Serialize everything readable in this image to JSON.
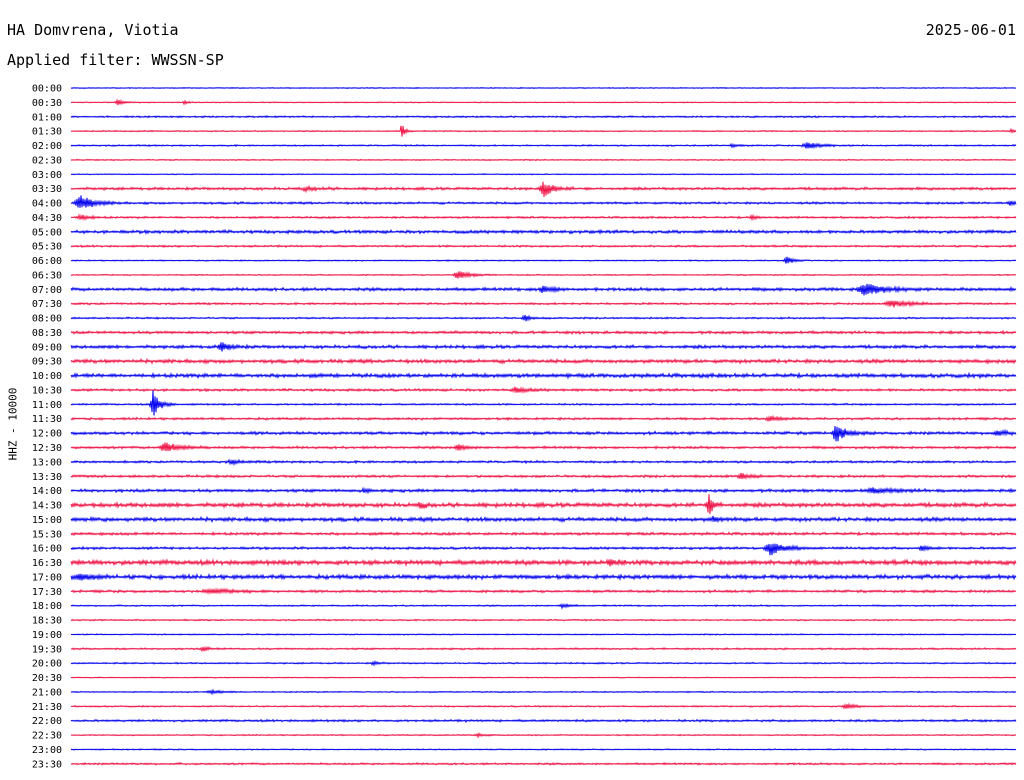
{
  "header": {
    "station": "HA Domvrena, Viotia",
    "date": "2025-06-01",
    "filter": "Applied filter: WWSSN-SP",
    "channel": "HHZ - 10000"
  },
  "chart_data": {
    "type": "line",
    "title": "HA Domvrena, Viotia",
    "date": "2025-06-01",
    "filter": "WWSSN-SP",
    "ylabel": "HHZ - 10000",
    "colors": [
      "#0000ee",
      "#ee1144"
    ],
    "rows": [
      {
        "label": "00:00",
        "noise": 0.4,
        "events": []
      },
      {
        "label": "00:30",
        "noise": 0.4,
        "events": [
          {
            "t": 0.05,
            "a": 3,
            "w": 0.006
          },
          {
            "t": 0.12,
            "a": 1.5,
            "w": 0.004
          }
        ]
      },
      {
        "label": "01:00",
        "noise": 0.7,
        "events": []
      },
      {
        "label": "01:30",
        "noise": 0.5,
        "events": [
          {
            "t": 0.35,
            "a": 8,
            "w": 0.003
          },
          {
            "t": 0.995,
            "a": 2,
            "w": 0.003
          }
        ]
      },
      {
        "label": "02:00",
        "noise": 0.6,
        "events": [
          {
            "t": 0.78,
            "a": 3,
            "w": 0.012
          },
          {
            "t": 0.7,
            "a": 1.5,
            "w": 0.005
          }
        ]
      },
      {
        "label": "02:30",
        "noise": 0.5,
        "events": []
      },
      {
        "label": "03:00",
        "noise": 0.4,
        "events": []
      },
      {
        "label": "03:30",
        "noise": 1.1,
        "events": [
          {
            "t": 0.5,
            "a": 8,
            "w": 0.008
          },
          {
            "t": 0.25,
            "a": 1.5,
            "w": 0.01
          }
        ]
      },
      {
        "label": "04:00",
        "noise": 0.9,
        "events": [
          {
            "t": 0.01,
            "a": 7,
            "w": 0.012
          },
          {
            "t": 0.995,
            "a": 2.5,
            "w": 0.008
          }
        ]
      },
      {
        "label": "04:30",
        "noise": 0.8,
        "events": [
          {
            "t": 0.01,
            "a": 2.5,
            "w": 0.008
          },
          {
            "t": 0.72,
            "a": 1.5,
            "w": 0.006
          }
        ]
      },
      {
        "label": "05:00",
        "noise": 1.3,
        "events": []
      },
      {
        "label": "05:30",
        "noise": 0.8,
        "events": []
      },
      {
        "label": "06:00",
        "noise": 0.5,
        "events": [
          {
            "t": 0.757,
            "a": 5,
            "w": 0.005
          }
        ]
      },
      {
        "label": "06:30",
        "noise": 0.5,
        "events": [
          {
            "t": 0.41,
            "a": 4,
            "w": 0.01
          }
        ]
      },
      {
        "label": "07:00",
        "noise": 1.3,
        "events": [
          {
            "t": 0.84,
            "a": 7,
            "w": 0.015
          },
          {
            "t": 0.5,
            "a": 3,
            "w": 0.01
          }
        ]
      },
      {
        "label": "07:30",
        "noise": 0.8,
        "events": [
          {
            "t": 0.87,
            "a": 3,
            "w": 0.018
          }
        ]
      },
      {
        "label": "08:00",
        "noise": 0.7,
        "events": [
          {
            "t": 0.48,
            "a": 3,
            "w": 0.005
          }
        ]
      },
      {
        "label": "08:30",
        "noise": 1.1,
        "events": []
      },
      {
        "label": "09:00",
        "noise": 1.3,
        "events": [
          {
            "t": 0.16,
            "a": 4,
            "w": 0.008
          }
        ]
      },
      {
        "label": "09:30",
        "noise": 1.5,
        "events": []
      },
      {
        "label": "10:00",
        "noise": 1.6,
        "events": []
      },
      {
        "label": "10:30",
        "noise": 1.0,
        "events": [
          {
            "t": 0.47,
            "a": 2.5,
            "w": 0.01
          }
        ]
      },
      {
        "label": "11:00",
        "noise": 0.7,
        "events": [
          {
            "t": 0.087,
            "a": 14,
            "w": 0.006
          }
        ]
      },
      {
        "label": "11:30",
        "noise": 0.9,
        "events": [
          {
            "t": 0.74,
            "a": 2,
            "w": 0.01
          }
        ]
      },
      {
        "label": "12:00",
        "noise": 1.2,
        "events": [
          {
            "t": 0.81,
            "a": 9,
            "w": 0.008
          },
          {
            "t": 0.98,
            "a": 2,
            "w": 0.01
          }
        ]
      },
      {
        "label": "12:30",
        "noise": 1.0,
        "events": [
          {
            "t": 0.1,
            "a": 5,
            "w": 0.012
          },
          {
            "t": 0.41,
            "a": 2.5,
            "w": 0.008
          }
        ]
      },
      {
        "label": "13:00",
        "noise": 0.9,
        "events": [
          {
            "t": 0.17,
            "a": 1.5,
            "w": 0.01
          }
        ]
      },
      {
        "label": "13:30",
        "noise": 1.0,
        "events": [
          {
            "t": 0.71,
            "a": 2.5,
            "w": 0.01
          }
        ]
      },
      {
        "label": "14:00",
        "noise": 1.2,
        "events": [
          {
            "t": 0.31,
            "a": 3,
            "w": 0.003
          },
          {
            "t": 0.85,
            "a": 2,
            "w": 0.02
          }
        ]
      },
      {
        "label": "14:30",
        "noise": 1.7,
        "events": [
          {
            "t": 0.675,
            "a": 11,
            "w": 0.004
          },
          {
            "t": 0.37,
            "a": 3,
            "w": 0.004
          }
        ]
      },
      {
        "label": "15:00",
        "noise": 1.6,
        "events": [
          {
            "t": 0.68,
            "a": 3,
            "w": 0.004
          }
        ]
      },
      {
        "label": "15:30",
        "noise": 1.1,
        "events": []
      },
      {
        "label": "16:00",
        "noise": 1.0,
        "events": [
          {
            "t": 0.74,
            "a": 7,
            "w": 0.012
          },
          {
            "t": 0.9,
            "a": 2.5,
            "w": 0.006
          }
        ]
      },
      {
        "label": "16:30",
        "noise": 1.9,
        "events": [
          {
            "t": 0.57,
            "a": 4,
            "w": 0.005
          }
        ]
      },
      {
        "label": "17:00",
        "noise": 1.7,
        "events": [
          {
            "t": 0.01,
            "a": 3,
            "w": 0.01
          }
        ]
      },
      {
        "label": "17:30",
        "noise": 1.0,
        "events": [
          {
            "t": 0.15,
            "a": 2,
            "w": 0.02
          }
        ]
      },
      {
        "label": "18:00",
        "noise": 0.6,
        "events": [
          {
            "t": 0.52,
            "a": 2,
            "w": 0.006
          }
        ]
      },
      {
        "label": "18:30",
        "noise": 0.6,
        "events": []
      },
      {
        "label": "19:00",
        "noise": 0.5,
        "events": []
      },
      {
        "label": "19:30",
        "noise": 0.7,
        "events": [
          {
            "t": 0.14,
            "a": 2,
            "w": 0.006
          }
        ]
      },
      {
        "label": "20:00",
        "noise": 0.6,
        "events": [
          {
            "t": 0.32,
            "a": 1.5,
            "w": 0.005
          }
        ]
      },
      {
        "label": "20:30",
        "noise": 0.4,
        "events": []
      },
      {
        "label": "21:00",
        "noise": 0.5,
        "events": [
          {
            "t": 0.15,
            "a": 1.5,
            "w": 0.012
          }
        ]
      },
      {
        "label": "21:30",
        "noise": 0.6,
        "events": [
          {
            "t": 0.82,
            "a": 2.5,
            "w": 0.008
          }
        ]
      },
      {
        "label": "22:00",
        "noise": 0.9,
        "events": []
      },
      {
        "label": "22:30",
        "noise": 0.5,
        "events": [
          {
            "t": 0.43,
            "a": 1.5,
            "w": 0.006
          }
        ]
      },
      {
        "label": "23:00",
        "noise": 0.5,
        "events": []
      },
      {
        "label": "23:30",
        "noise": 0.8,
        "events": []
      }
    ]
  }
}
